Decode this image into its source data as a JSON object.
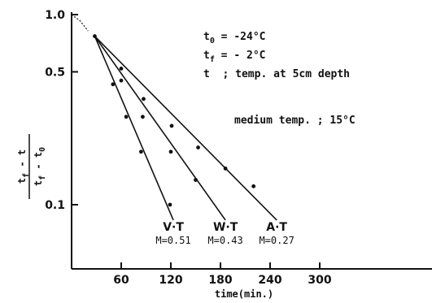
{
  "chart_data": {
    "type": "scatter",
    "title": "",
    "xlabel": "time(min.)",
    "ylabel_numerator": "t_f - t",
    "ylabel_denominator": "t_f - t_0",
    "ylabel": "(t_f - t)/(t_f - t_0)",
    "y_scale": "log",
    "xlim": [
      0,
      340
    ],
    "ylim": [
      0.05,
      1.0
    ],
    "x_tick_labels": [
      "60",
      "120",
      "180",
      "240",
      "300"
    ],
    "x_ticks": [
      60,
      120,
      180,
      240,
      300
    ],
    "y_tick_labels": [
      "1.0",
      "0.5",
      "0.1"
    ],
    "y_ticks": [
      1.0,
      0.5,
      0.1
    ],
    "grid": false,
    "annotations": {
      "t0": "t₀ = -24°C",
      "tf": "t_f = - 2°C",
      "t": "t  ; temp. at 5cm depth",
      "medium": "medium temp. ; 15°C"
    },
    "annotation_parts": {
      "t0_var": "t",
      "t0_sub": "0",
      "t0_rest": " = -24°C",
      "tf_var": "t",
      "tf_sub": "f",
      "tf_rest": " = - 2°C",
      "t_line": "t  ; temp. at 5cm depth",
      "medium": "medium temp. ; 15°C"
    },
    "ylabel_parts": {
      "num_a": "t",
      "num_a_sub": "f",
      "num_rest": " - t",
      "den_a": "t",
      "den_a_sub": "f",
      "den_rest": " - t",
      "den_rest_sub": "0"
    },
    "initial_curve": [
      {
        "x": 0,
        "y": 1.0
      },
      {
        "x": 10,
        "y": 0.93
      },
      {
        "x": 20,
        "y": 0.82
      }
    ],
    "series": [
      {
        "name": "V·T",
        "m_label": "M=0.51",
        "line": [
          {
            "x": 28,
            "y": 0.77
          },
          {
            "x": 123,
            "y": 0.083
          }
        ],
        "points": [
          {
            "x": 28,
            "y": 0.77
          },
          {
            "x": 50,
            "y": 0.43
          },
          {
            "x": 66,
            "y": 0.29
          },
          {
            "x": 84,
            "y": 0.19
          },
          {
            "x": 119,
            "y": 0.1
          }
        ]
      },
      {
        "name": "W·T",
        "m_label": "M=0.43",
        "line": [
          {
            "x": 28,
            "y": 0.77
          },
          {
            "x": 186,
            "y": 0.083
          }
        ],
        "points": [
          {
            "x": 60,
            "y": 0.45
          },
          {
            "x": 86,
            "y": 0.29
          },
          {
            "x": 120,
            "y": 0.19
          },
          {
            "x": 150,
            "y": 0.135
          }
        ]
      },
      {
        "name": "A·T",
        "m_label": "M=0.27",
        "line": [
          {
            "x": 28,
            "y": 0.77
          },
          {
            "x": 248,
            "y": 0.083
          }
        ],
        "points": [
          {
            "x": 60,
            "y": 0.52
          },
          {
            "x": 87,
            "y": 0.36
          },
          {
            "x": 121,
            "y": 0.26
          },
          {
            "x": 153,
            "y": 0.2
          },
          {
            "x": 186,
            "y": 0.155
          },
          {
            "x": 220,
            "y": 0.125
          }
        ]
      }
    ]
  }
}
